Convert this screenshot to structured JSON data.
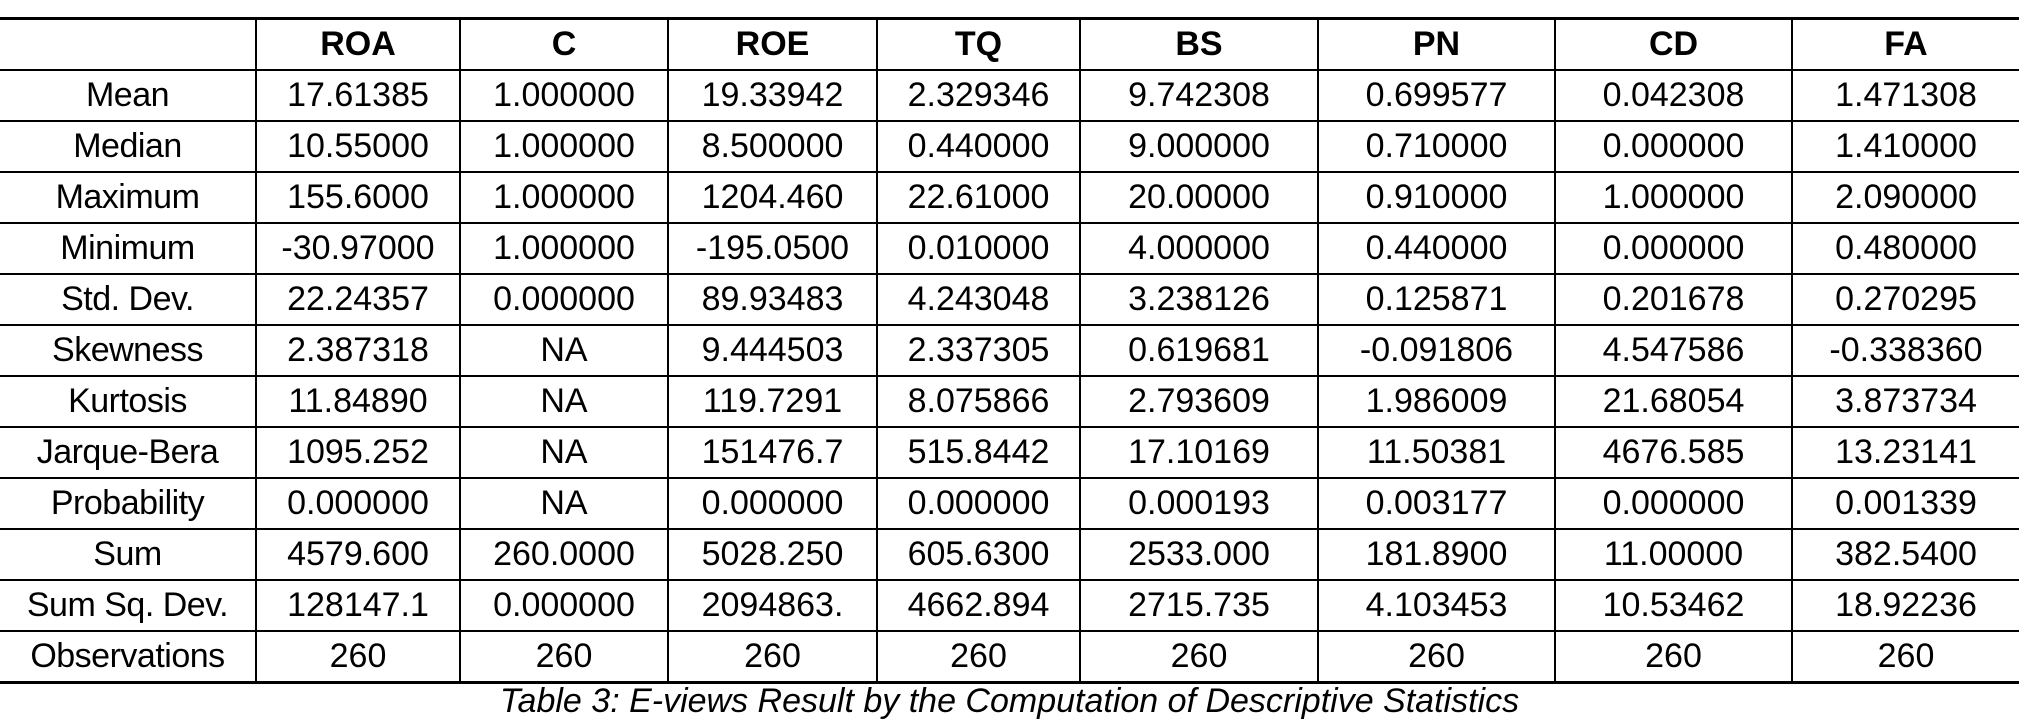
{
  "table": {
    "columns": [
      "",
      "ROA",
      "C",
      "ROE",
      "TQ",
      "BS",
      "PN",
      "CD",
      "FA"
    ],
    "rows": [
      {
        "label": "Mean",
        "values": [
          "17.61385",
          "1.000000",
          "19.33942",
          "2.329346",
          "9.742308",
          "0.699577",
          "0.042308",
          "1.471308"
        ]
      },
      {
        "label": "Median",
        "values": [
          "10.55000",
          "1.000000",
          "8.500000",
          "0.440000",
          "9.000000",
          "0.710000",
          "0.000000",
          "1.410000"
        ]
      },
      {
        "label": "Maximum",
        "values": [
          "155.6000",
          "1.000000",
          "1204.460",
          "22.61000",
          "20.00000",
          "0.910000",
          "1.000000",
          "2.090000"
        ]
      },
      {
        "label": "Minimum",
        "values": [
          "-30.97000",
          "1.000000",
          "-195.0500",
          "0.010000",
          "4.000000",
          "0.440000",
          "0.000000",
          "0.480000"
        ]
      },
      {
        "label": "Std. Dev.",
        "values": [
          "22.24357",
          "0.000000",
          "89.93483",
          "4.243048",
          "3.238126",
          "0.125871",
          "0.201678",
          "0.270295"
        ]
      },
      {
        "label": "Skewness",
        "values": [
          "2.387318",
          "NA",
          "9.444503",
          "2.337305",
          "0.619681",
          "-0.091806",
          "4.547586",
          "-0.338360"
        ]
      },
      {
        "label": "Kurtosis",
        "values": [
          "11.84890",
          "NA",
          "119.7291",
          "8.075866",
          "2.793609",
          "1.986009",
          "21.68054",
          "3.873734"
        ]
      },
      {
        "label": "Jarque-Bera",
        "values": [
          "1095.252",
          "NA",
          "151476.7",
          "515.8442",
          "17.10169",
          "11.50381",
          "4676.585",
          "13.23141"
        ]
      },
      {
        "label": "Probability",
        "values": [
          "0.000000",
          "NA",
          "0.000000",
          "0.000000",
          "0.000193",
          "0.003177",
          "0.000000",
          "0.001339"
        ]
      },
      {
        "label": "Sum",
        "values": [
          "4579.600",
          "260.0000",
          "5028.250",
          "605.6300",
          "2533.000",
          "181.8900",
          "11.00000",
          "382.5400"
        ]
      },
      {
        "label": "Sum Sq. Dev.",
        "values": [
          "128147.1",
          "0.000000",
          "2094863.",
          "4662.894",
          "2715.735",
          "4.103453",
          "10.53462",
          "18.92236"
        ]
      },
      {
        "label": "Observations",
        "values": [
          "260",
          "260",
          "260",
          "260",
          "260",
          "260",
          "260",
          "260"
        ]
      }
    ]
  },
  "caption": "Table 3: E-views Result by the Computation of Descriptive Statistics"
}
